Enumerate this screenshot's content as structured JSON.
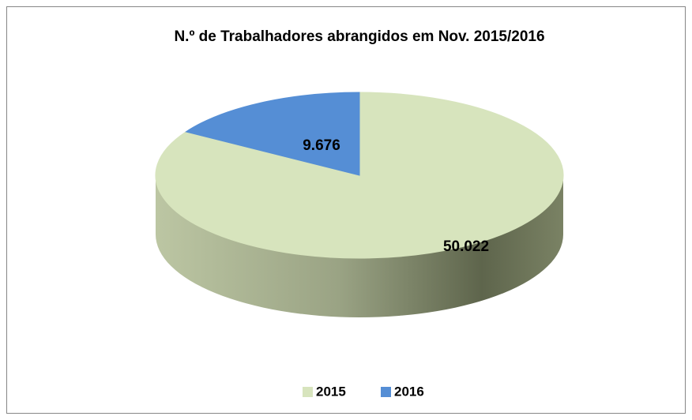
{
  "chart_data": {
    "type": "pie",
    "title": "N.º de Trabalhadores abrangidos em Nov. 2015/2016",
    "categories": [
      "2015",
      "2016"
    ],
    "values": [
      50022,
      9676
    ],
    "value_labels": [
      "50.022",
      "9.676"
    ],
    "colors": [
      "#d7e4bd",
      "#558ed5"
    ],
    "legend": "bottom"
  }
}
